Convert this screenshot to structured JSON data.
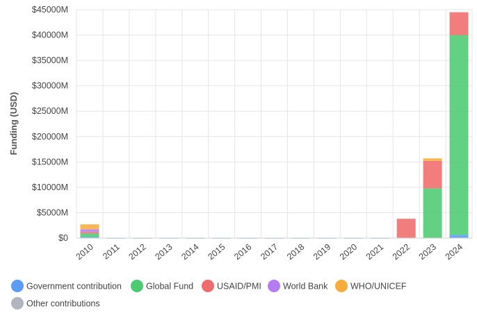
{
  "chart_data": {
    "type": "bar",
    "stacked": true,
    "ylabel": "Funding (USD)",
    "xlabel": "",
    "ylim": [
      0,
      45000
    ],
    "y_ticks": [
      "$0",
      "$5000M",
      "$10000M",
      "$15000M",
      "$20000M",
      "$25000M",
      "$30000M",
      "$35000M",
      "$40000M",
      "$45000M"
    ],
    "y_tick_values": [
      0,
      5000,
      10000,
      15000,
      20000,
      25000,
      30000,
      35000,
      40000,
      45000
    ],
    "categories": [
      "2010",
      "2011",
      "2012",
      "2013",
      "2014",
      "2015",
      "2016",
      "2017",
      "2018",
      "2019",
      "2020",
      "2021",
      "2022",
      "2023",
      "2024"
    ],
    "grid": true,
    "legend_position": "bottom",
    "series": [
      {
        "name": "Government contribution",
        "color": "#5b9cf6",
        "values": [
          200,
          30,
          30,
          30,
          30,
          30,
          30,
          30,
          30,
          30,
          30,
          30,
          0,
          0,
          600
        ]
      },
      {
        "name": "Global Fund",
        "color": "#4ccb73",
        "values": [
          700,
          0,
          0,
          0,
          0,
          0,
          0,
          0,
          0,
          0,
          0,
          0,
          0,
          9800,
          39400
        ]
      },
      {
        "name": "USAID/PMI",
        "color": "#f06b6b",
        "values": [
          300,
          0,
          0,
          0,
          0,
          0,
          0,
          0,
          0,
          0,
          0,
          0,
          3800,
          5400,
          4500
        ]
      },
      {
        "name": "World Bank",
        "color": "#b57cf2",
        "values": [
          500,
          0,
          0,
          0,
          0,
          0,
          0,
          0,
          0,
          0,
          0,
          0,
          0,
          0,
          0
        ]
      },
      {
        "name": "WHO/UNICEF",
        "color": "#f5ad3d",
        "values": [
          1000,
          0,
          0,
          0,
          0,
          0,
          0,
          0,
          0,
          0,
          0,
          0,
          0,
          500,
          0
        ]
      },
      {
        "name": "Other contributions",
        "color": "#b0b5bf",
        "values": [
          0,
          0,
          0,
          0,
          0,
          0,
          0,
          0,
          0,
          0,
          0,
          0,
          0,
          0,
          0
        ]
      }
    ]
  }
}
